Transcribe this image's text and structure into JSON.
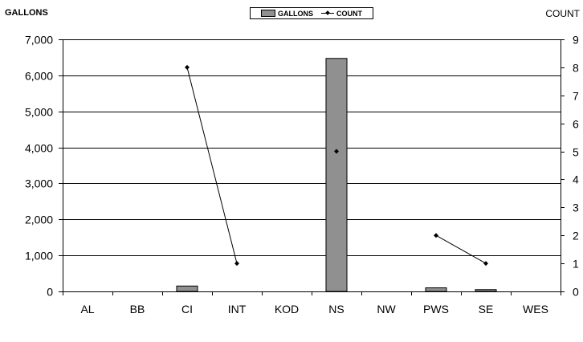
{
  "chart_data": {
    "type": "bar",
    "categories": [
      "AL",
      "BB",
      "CI",
      "INT",
      "KOD",
      "NS",
      "NW",
      "PWS",
      "SE",
      "WES"
    ],
    "series": [
      {
        "name": "GALLONS",
        "type": "bar",
        "axis": "left",
        "values": [
          0,
          0,
          150,
          0,
          0,
          6470,
          0,
          100,
          50,
          0
        ],
        "color": "#909090"
      },
      {
        "name": "COUNT",
        "type": "line",
        "axis": "right",
        "values": [
          null,
          null,
          8,
          1,
          null,
          5,
          null,
          2,
          1,
          null
        ],
        "color": "#000000"
      }
    ],
    "ylabel": "GALLONS",
    "y2label": "COUNT",
    "ylim": [
      0,
      7000
    ],
    "y2lim": [
      0,
      9
    ],
    "yticks": [
      "0",
      "1,000",
      "2,000",
      "3,000",
      "4,000",
      "5,000",
      "6,000",
      "7,000"
    ],
    "y2ticks": [
      "0",
      "1",
      "2",
      "3",
      "4",
      "5",
      "6",
      "7",
      "8",
      "9"
    ],
    "grid": true,
    "legend": "top-center"
  }
}
